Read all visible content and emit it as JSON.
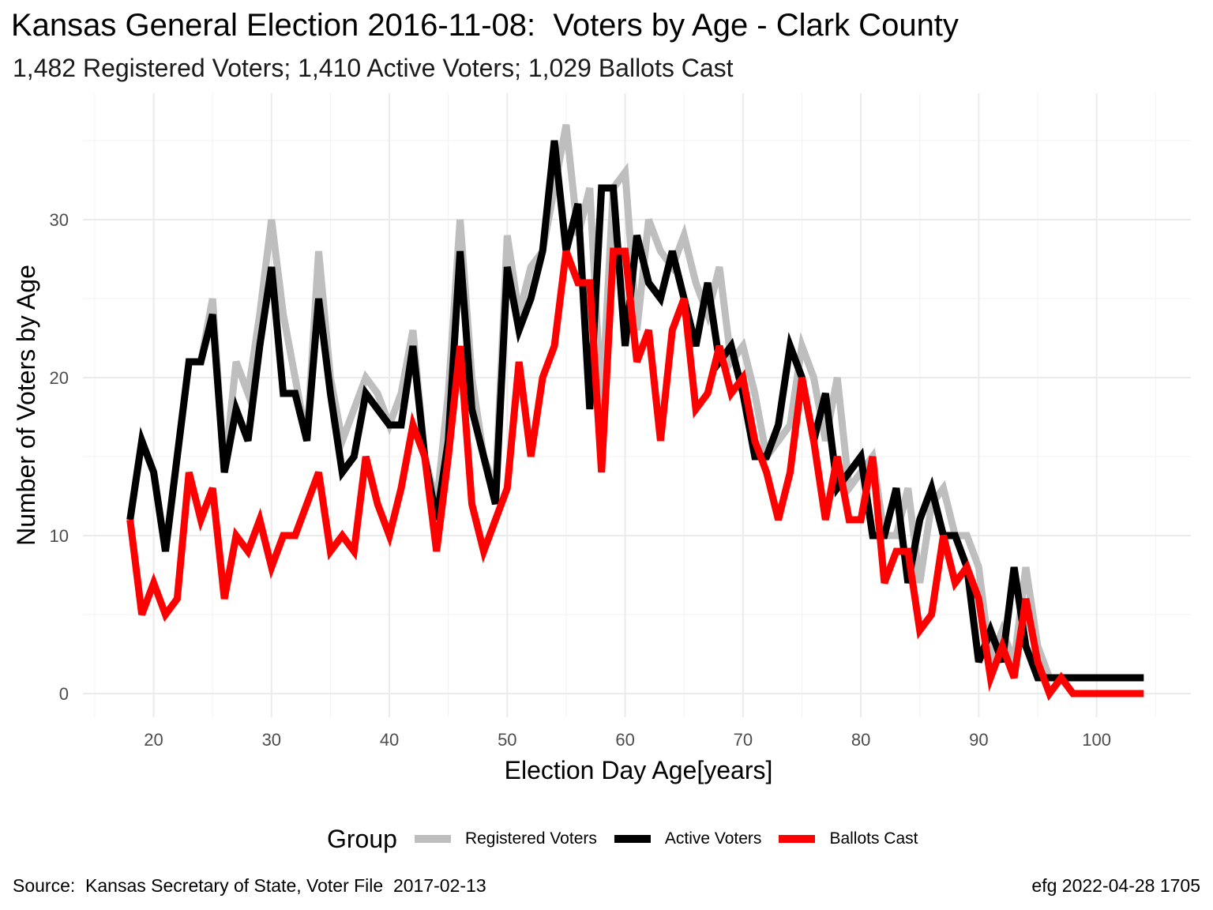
{
  "chart_data": {
    "type": "line",
    "title": "Kansas General Election 2016-11-08:  Voters by Age - Clark County",
    "subtitle": "1,482 Registered Voters; 1,410 Active Voters; 1,029 Ballots Cast",
    "xlabel": "Election Day Age[years]",
    "ylabel": "Number of Voters by Age",
    "xlim": [
      14,
      108
    ],
    "ylim": [
      -1.5,
      38
    ],
    "x_ticks": [
      20,
      30,
      40,
      50,
      60,
      70,
      80,
      90,
      100
    ],
    "y_ticks": [
      0,
      10,
      20,
      30
    ],
    "grid": true,
    "legend_title": "Group",
    "legend_position": "bottom",
    "x": [
      18,
      19,
      20,
      21,
      22,
      23,
      24,
      25,
      26,
      27,
      28,
      29,
      30,
      31,
      32,
      33,
      34,
      35,
      36,
      37,
      38,
      39,
      40,
      41,
      42,
      43,
      44,
      45,
      46,
      47,
      48,
      49,
      50,
      51,
      52,
      53,
      54,
      55,
      56,
      57,
      58,
      59,
      60,
      61,
      62,
      63,
      64,
      65,
      66,
      67,
      68,
      69,
      70,
      71,
      72,
      73,
      74,
      75,
      76,
      77,
      78,
      79,
      80,
      81,
      82,
      83,
      84,
      85,
      86,
      87,
      88,
      89,
      90,
      91,
      92,
      93,
      94,
      95,
      96,
      97,
      98,
      99,
      100,
      101,
      102,
      103,
      104
    ],
    "series": [
      {
        "name": "Registered Voters",
        "color": "#bebebe",
        "values": [
          11,
          16,
          14,
          9,
          15,
          21,
          21,
          25,
          14,
          21,
          19,
          24,
          30,
          24,
          20,
          16,
          28,
          20,
          16,
          18,
          20,
          19,
          17,
          19,
          23,
          15,
          12,
          19,
          30,
          20,
          15,
          13,
          29,
          24,
          27,
          28,
          32,
          36,
          29,
          32,
          18,
          32,
          33,
          23,
          30,
          28,
          27,
          29,
          26,
          24,
          27,
          21,
          22,
          19,
          15,
          16,
          17,
          22,
          20,
          16,
          20,
          13,
          14,
          15,
          10,
          10,
          13,
          7,
          12,
          13,
          10,
          10,
          8,
          2,
          4,
          2,
          8,
          3,
          1,
          1,
          1,
          1,
          1,
          1,
          1,
          1,
          1
        ]
      },
      {
        "name": "Active Voters",
        "color": "#000000",
        "values": [
          11,
          16,
          14,
          9,
          15,
          21,
          21,
          24,
          14,
          18,
          16,
          22,
          27,
          19,
          19,
          16,
          25,
          19,
          14,
          15,
          19,
          18,
          17,
          17,
          22,
          15,
          11,
          16,
          28,
          18,
          15,
          12,
          27,
          23,
          25,
          28,
          35,
          28,
          31,
          18,
          32,
          32,
          22,
          29,
          26,
          25,
          28,
          25,
          22,
          26,
          21,
          22,
          19,
          15,
          15,
          17,
          22,
          20,
          16,
          19,
          13,
          14,
          15,
          10,
          10,
          13,
          7,
          11,
          13,
          10,
          10,
          8,
          2,
          4,
          2,
          8,
          3,
          1,
          1,
          1,
          1,
          1,
          1,
          1,
          1,
          1,
          1
        ]
      },
      {
        "name": "Ballots Cast",
        "color": "#ff0000",
        "values": [
          11,
          5,
          7,
          5,
          6,
          14,
          11,
          13,
          6,
          10,
          9,
          11,
          8,
          10,
          10,
          12,
          14,
          9,
          10,
          9,
          15,
          12,
          10,
          13,
          17,
          15,
          9,
          15,
          22,
          12,
          9,
          11,
          13,
          21,
          15,
          20,
          22,
          28,
          26,
          26,
          14,
          28,
          28,
          21,
          23,
          16,
          23,
          25,
          18,
          19,
          22,
          19,
          20,
          16,
          14,
          11,
          14,
          20,
          16,
          11,
          15,
          11,
          11,
          15,
          7,
          9,
          9,
          4,
          5,
          10,
          7,
          8,
          6,
          1,
          3,
          1,
          6,
          2,
          0,
          1,
          0,
          0,
          0,
          0,
          0,
          0,
          0
        ]
      }
    ]
  },
  "caption": {
    "left": "Source:  Kansas Secretary of State, Voter File  2017-02-13",
    "right": "efg 2022-04-28 1705"
  }
}
